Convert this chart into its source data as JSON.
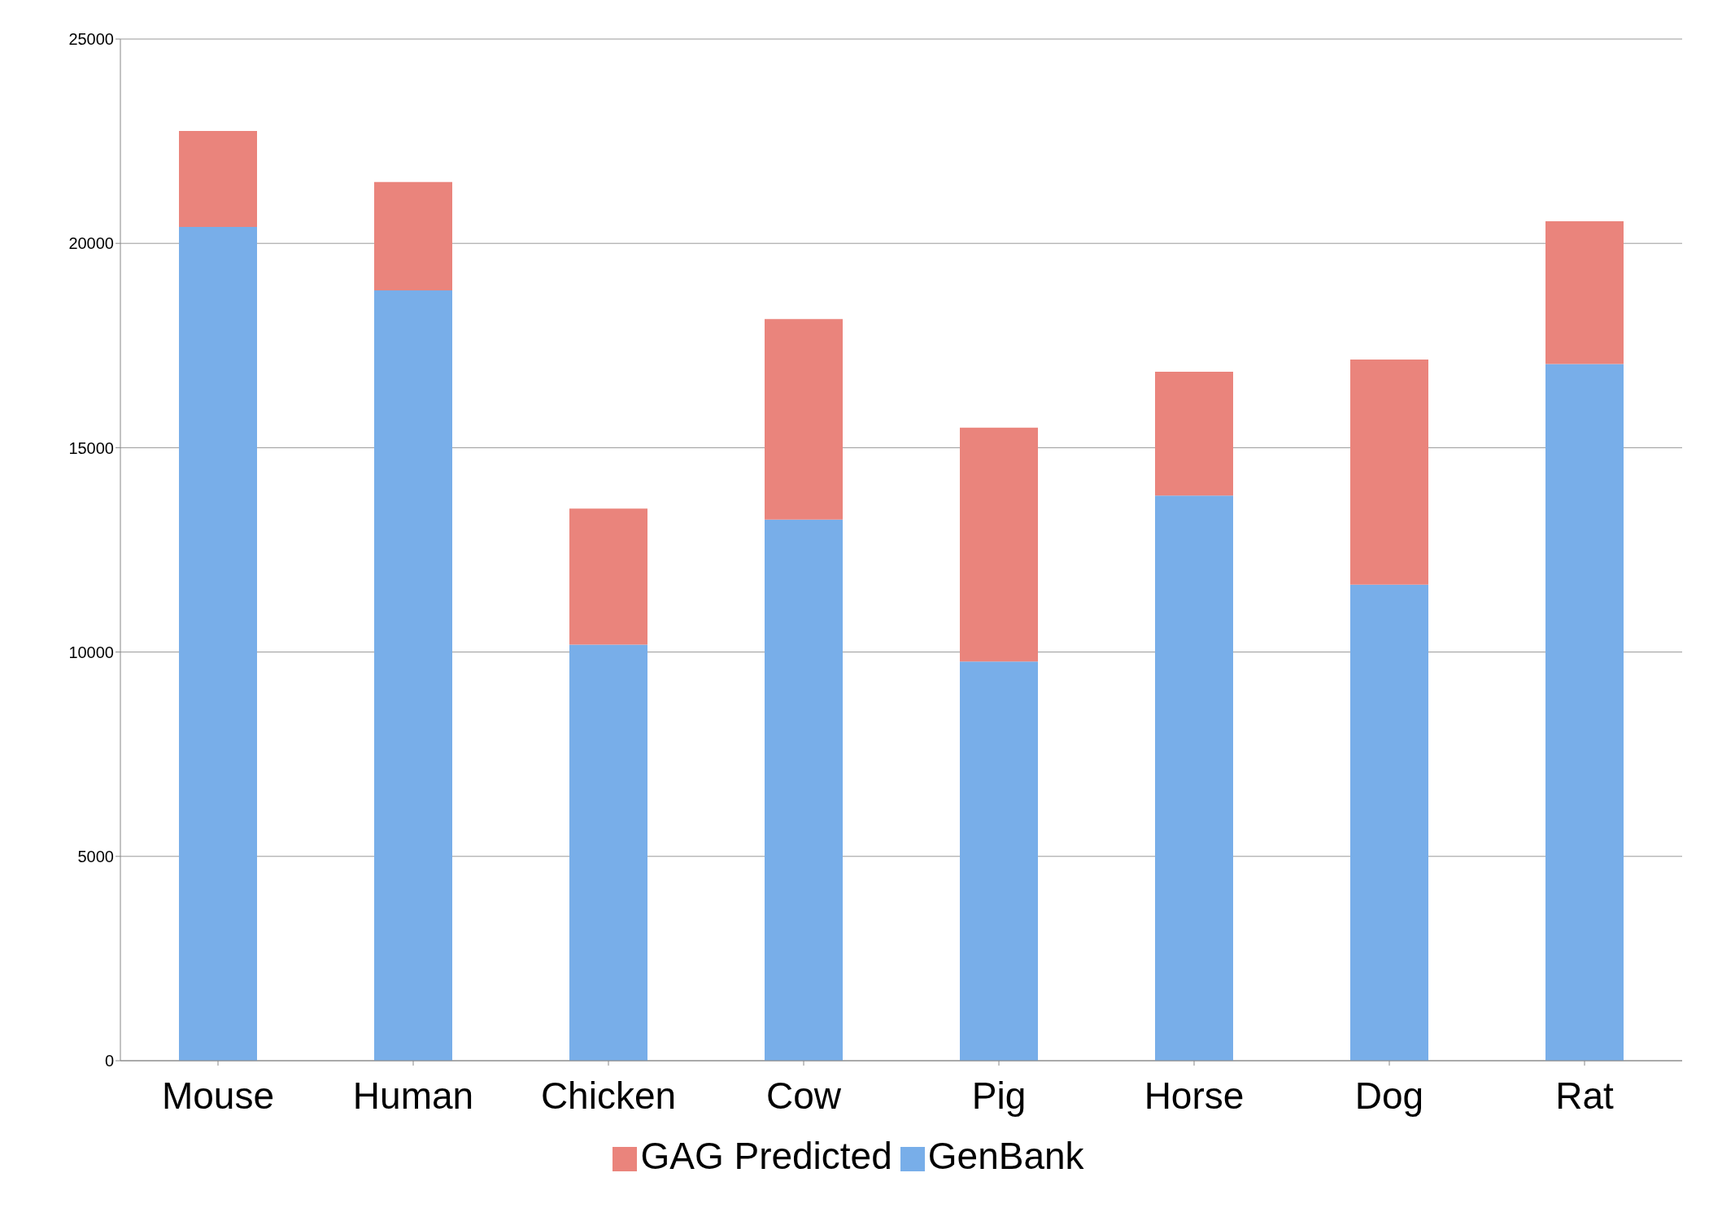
{
  "chart_data": {
    "type": "bar",
    "stacked": true,
    "categories": [
      "Mouse",
      "Human",
      "Chicken",
      "Cow",
      "Pig",
      "Horse",
      "Dog",
      "Rat"
    ],
    "series": [
      {
        "name": "GenBank",
        "color": "#78aee9",
        "values": [
          20400,
          18850,
          10180,
          13240,
          9770,
          13830,
          11650,
          17050
        ]
      },
      {
        "name": "GAG Predicted",
        "color": "#ea847c",
        "values": [
          2350,
          2650,
          3330,
          4910,
          5720,
          3030,
          5510,
          3490
        ]
      }
    ],
    "ylim": [
      0,
      25000
    ],
    "yticks": [
      0,
      5000,
      10000,
      15000,
      20000,
      25000
    ],
    "grid": "y",
    "legend": "bottom"
  }
}
